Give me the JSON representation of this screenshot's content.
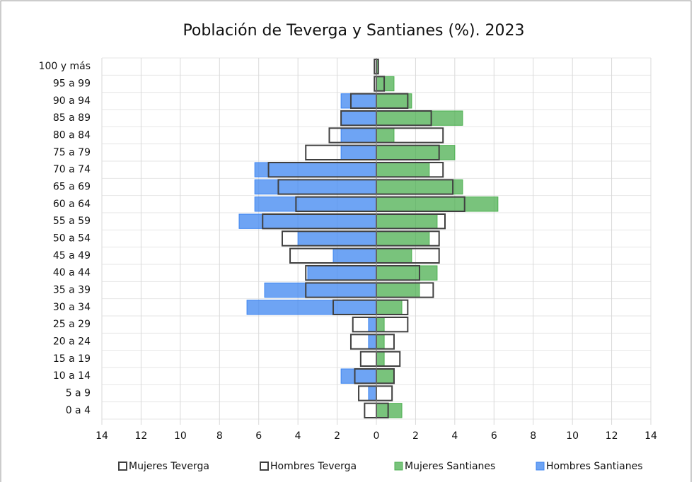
{
  "chart_data": {
    "type": "pyramid",
    "title": "Población de Teverga y Santianes (%). 2023",
    "categories": [
      "100 y más",
      "95 a 99",
      "90 a 94",
      "85 a 89",
      "80 a 84",
      "75 a 79",
      "70 a 74",
      "65 a 69",
      "60 a 64",
      "55 a 59",
      "50 a 54",
      "45 a 49",
      "40 a 44",
      "35 a 39",
      "30 a 34",
      "25 a 29",
      "20 a 24",
      "15 a 19",
      "10 a 14",
      "5 a 9",
      "0 a 4"
    ],
    "series": [
      {
        "name": "Mujeres Santianes",
        "color": "#4caf50",
        "style": "filled",
        "values": [
          0.1,
          0.9,
          1.8,
          4.4,
          0.9,
          4.0,
          2.7,
          4.4,
          6.2,
          3.1,
          2.7,
          1.8,
          3.1,
          2.2,
          1.3,
          0.4,
          0.4,
          0.4,
          0.9,
          0,
          1.3
        ]
      },
      {
        "name": "Hombres Santianes",
        "color": "#3d85f0",
        "style": "filled",
        "values": [
          0,
          0,
          -1.8,
          -1.8,
          -1.8,
          -1.8,
          -6.2,
          -6.2,
          -6.2,
          -7.0,
          -4.0,
          -2.2,
          -3.5,
          -5.7,
          -6.6,
          -0.4,
          -0.4,
          0,
          -1.8,
          -0.4,
          0
        ]
      },
      {
        "name": "Mujeres Teverga",
        "color": "#404040",
        "style": "outline",
        "values": [
          0.1,
          0.4,
          1.6,
          2.8,
          3.4,
          3.2,
          3.4,
          3.9,
          4.5,
          3.5,
          3.2,
          3.2,
          2.2,
          2.9,
          1.6,
          1.6,
          0.9,
          1.2,
          0.9,
          0.8,
          0.6
        ]
      },
      {
        "name": "Hombres Teverga",
        "color": "#404040",
        "style": "outline",
        "values": [
          -0.1,
          -0.1,
          -1.3,
          -1.8,
          -2.4,
          -3.6,
          -5.5,
          -5.0,
          -4.1,
          -5.8,
          -4.8,
          -4.4,
          -3.6,
          -3.6,
          -2.2,
          -1.2,
          -1.3,
          -0.8,
          -1.1,
          -0.9,
          -0.6
        ]
      }
    ],
    "legend_order": [
      2,
      3,
      0,
      1
    ],
    "xlim": [
      -14,
      14
    ],
    "xticks": [
      {
        "value": -14,
        "label": "14"
      },
      {
        "value": -12,
        "label": "12"
      },
      {
        "value": -10,
        "label": "10"
      },
      {
        "value": -8,
        "label": "8"
      },
      {
        "value": -6,
        "label": "6"
      },
      {
        "value": -4,
        "label": "4"
      },
      {
        "value": -2,
        "label": "2"
      },
      0,
      2,
      4,
      6,
      8,
      10,
      12,
      14
    ],
    "grid": true,
    "legend": "bottom"
  }
}
